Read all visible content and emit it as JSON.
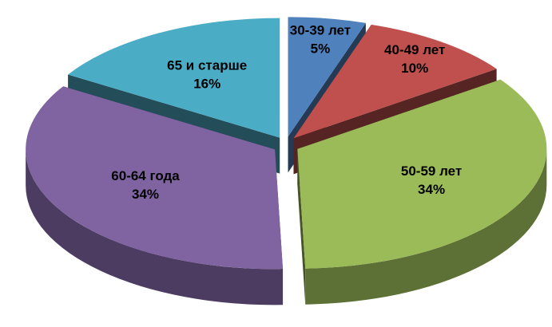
{
  "chart_data": {
    "type": "pie",
    "categories": [
      "30-39 лет",
      "40-49 лет",
      "50-59 лет",
      "60-64 года",
      "65 и старше"
    ],
    "values": [
      5,
      10,
      34,
      34,
      16
    ],
    "value_labels": [
      "5%",
      "10%",
      "34%",
      "34%",
      "16%"
    ],
    "colors": [
      "#4f81bd",
      "#c0504d",
      "#9bbb59",
      "#8064a2",
      "#4bacc6"
    ]
  }
}
